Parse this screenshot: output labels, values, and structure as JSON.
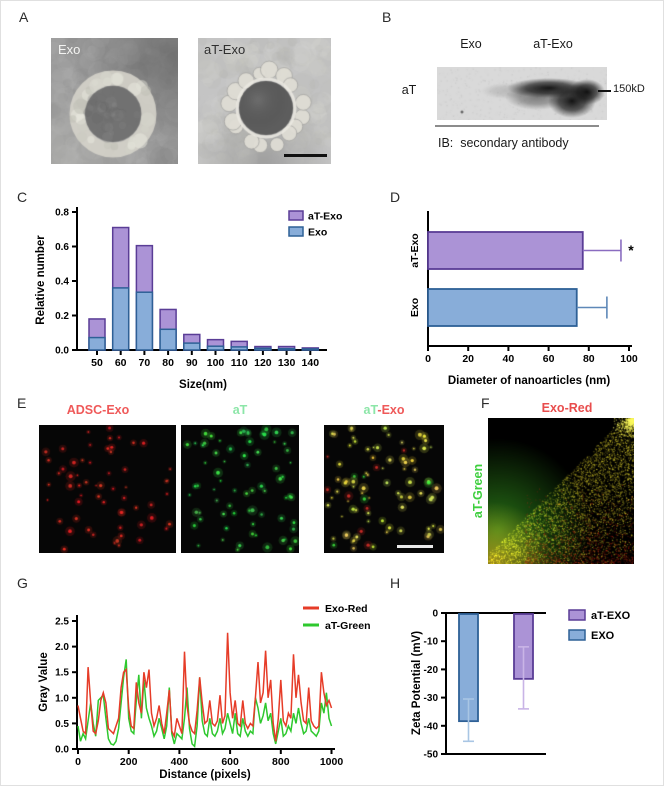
{
  "panels": {
    "A": {
      "label": "A",
      "images": [
        {
          "label": "Exo"
        },
        {
          "label": "aT-Exo",
          "has_scale_bar": true
        }
      ]
    },
    "B": {
      "label": "B",
      "lanes": [
        "Exo",
        "aT-Exo"
      ],
      "row_label": "aT",
      "marker": "150kD",
      "caption": "IB:  secondary antibody"
    },
    "C": {
      "label": "C"
    },
    "D": {
      "label": "D"
    },
    "E": {
      "label": "E",
      "titles": {
        "img1": "ADSC-Exo",
        "img2": "aT",
        "img3_green": "aT",
        "img3_red": "-Exo"
      },
      "title_colors": {
        "red": "#ef5959",
        "green": "#8ce6a8"
      }
    },
    "F": {
      "label": "F",
      "title": "Exo-Red",
      "title_color": "#e84d4d",
      "side_label": "aT-Green",
      "side_label_color": "#3ecf3e"
    },
    "G": {
      "label": "G"
    },
    "H": {
      "label": "H"
    }
  },
  "colors": {
    "purple_fill": "#ab93d6",
    "purple_edge": "#5a3d96",
    "blue_fill": "#88add9",
    "blue_edge": "#2e6096",
    "red_line": "#e63c28",
    "green_line": "#2ec82e"
  },
  "chart_data": [
    {
      "id": "C",
      "type": "bar",
      "style": "overlay",
      "categories": [
        "50",
        "60",
        "70",
        "80",
        "90",
        "100",
        "110",
        "120",
        "130",
        "140"
      ],
      "series": [
        {
          "name": "aT-Exo",
          "color": "#ab93d6",
          "edge": "#5a3d96",
          "values": [
            0.18,
            0.71,
            0.605,
            0.235,
            0.09,
            0.06,
            0.05,
            0.02,
            0.02,
            0.012
          ]
        },
        {
          "name": "Exo",
          "color": "#88add9",
          "edge": "#2e6096",
          "values": [
            0.072,
            0.36,
            0.335,
            0.12,
            0.04,
            0.022,
            0.018,
            0.01,
            0.008,
            0.006
          ]
        }
      ],
      "xlabel": "Size(nm)",
      "ylabel": "Relative number",
      "ylim": [
        0,
        0.8
      ],
      "yticks": [
        "0.0",
        "0.2",
        "0.4",
        "0.6",
        "0.8"
      ],
      "legend_position": "top-right",
      "grid": false
    },
    {
      "id": "D",
      "type": "bar-horizontal",
      "categories": [
        "aT-Exo",
        "Exo"
      ],
      "values": [
        77,
        74
      ],
      "errors_plus": [
        19,
        15
      ],
      "colors": [
        "#ab93d6",
        "#88add9"
      ],
      "edges": [
        "#5a3d96",
        "#2e6096"
      ],
      "whiskers": [
        "#8a6cc0",
        "#5e88b8"
      ],
      "xlabel": "Diameter of nanoarticles (nm)",
      "xlim": [
        0,
        100
      ],
      "xticks": [
        "0",
        "20",
        "40",
        "60",
        "80",
        "100"
      ],
      "significance": [
        {
          "category": "aT-Exo",
          "text": "*"
        }
      ],
      "grid": false
    },
    {
      "id": "G",
      "type": "line",
      "xlabel": "Distance (pixels)",
      "ylabel": "Gray Value",
      "xlim": [
        0,
        1000
      ],
      "ylim": [
        0,
        2.5
      ],
      "xticks": [
        0,
        200,
        400,
        600,
        800,
        1000
      ],
      "yticks": [
        "0.0",
        "0.5",
        "1.0",
        "1.5",
        "2.0",
        "2.5"
      ],
      "legend_position": "top-right",
      "grid": false,
      "x_step": 10,
      "series": [
        {
          "name": "Exo-Red",
          "color": "#e63c28",
          "values": [
            0.85,
            0.6,
            0.35,
            0.3,
            1.6,
            0.9,
            0.35,
            0.3,
            0.55,
            0.95,
            1.1,
            0.9,
            0.4,
            0.35,
            0.3,
            0.45,
            0.6,
            1.2,
            1.5,
            1.55,
            0.8,
            0.45,
            0.4,
            1.3,
            0.9,
            0.7,
            1.5,
            1.2,
            1.55,
            0.7,
            0.45,
            0.6,
            0.85,
            0.5,
            0.3,
            0.7,
            1.15,
            0.35,
            0.25,
            0.6,
            0.45,
            0.3,
            1.9,
            0.85,
            0.5,
            0.35,
            0.3,
            0.75,
            1.4,
            0.9,
            0.5,
            0.55,
            0.95,
            0.5,
            0.45,
            0.55,
            1.05,
            0.5,
            0.65,
            2.27,
            1.1,
            0.6,
            0.95,
            0.5,
            0.45,
            0.95,
            0.5,
            0.4,
            0.5,
            0.45,
            1.0,
            1.7,
            0.9,
            1.1,
            1.92,
            1.0,
            1.35,
            0.5,
            0.15,
            0.6,
            1.35,
            0.55,
            0.45,
            0.7,
            0.6,
            1.85,
            1.0,
            1.45,
            0.9,
            0.55,
            0.5,
            1.2,
            0.55,
            0.45,
            0.4,
            0.45,
            1.5,
            1.1,
            0.85,
            0.95,
            0.8
          ]
        },
        {
          "name": "aT-Green",
          "color": "#2ec82e",
          "values": [
            0.45,
            0.15,
            0.3,
            0.2,
            0.55,
            0.9,
            0.5,
            0.25,
            0.95,
            1.0,
            1.05,
            0.6,
            0.2,
            0.1,
            0.08,
            0.15,
            0.4,
            0.9,
            1.4,
            1.75,
            0.6,
            0.35,
            0.3,
            0.95,
            1.45,
            0.6,
            1.35,
            0.8,
            0.6,
            0.45,
            0.25,
            0.35,
            0.6,
            0.4,
            0.2,
            0.45,
            1.2,
            0.3,
            0.1,
            0.3,
            0.25,
            0.2,
            0.6,
            1.2,
            0.4,
            0.1,
            0.05,
            0.45,
            1.4,
            0.55,
            0.3,
            0.25,
            0.6,
            0.3,
            0.25,
            0.35,
            0.6,
            0.3,
            0.4,
            0.7,
            0.5,
            0.3,
            0.7,
            0.3,
            0.25,
            0.6,
            0.35,
            0.25,
            0.35,
            0.3,
            1.0,
            0.8,
            0.5,
            0.65,
            0.9,
            0.55,
            0.7,
            0.3,
            0.1,
            0.35,
            0.6,
            0.25,
            0.3,
            0.45,
            0.35,
            0.7,
            0.5,
            0.8,
            0.5,
            0.3,
            0.35,
            0.6,
            0.35,
            0.3,
            0.25,
            0.35,
            0.9,
            0.7,
            1.1,
            0.6,
            0.45
          ]
        }
      ]
    },
    {
      "id": "H",
      "type": "bar",
      "categories": [
        "EXO",
        "aT-EXO"
      ],
      "values": [
        -38,
        -23
      ],
      "errors": [
        7.5,
        11
      ],
      "colors": [
        "#88add9",
        "#ab93d6"
      ],
      "edges": [
        "#2e6096",
        "#5a3d96"
      ],
      "whiskers": [
        "#a9c6e4",
        "#c9b4e6"
      ],
      "ylabel": "Zeta Potential (mV)",
      "ylim": [
        -50,
        0
      ],
      "yticks": [
        "0",
        "-10",
        "-20",
        "-30",
        "-40",
        "-50"
      ],
      "legend": [
        {
          "name": "aT-EXO",
          "color": "#ab93d6",
          "edge": "#5a3d96"
        },
        {
          "name": "EXO",
          "color": "#88add9",
          "edge": "#2e6096"
        }
      ],
      "legend_position": "top-right",
      "grid": false
    }
  ]
}
